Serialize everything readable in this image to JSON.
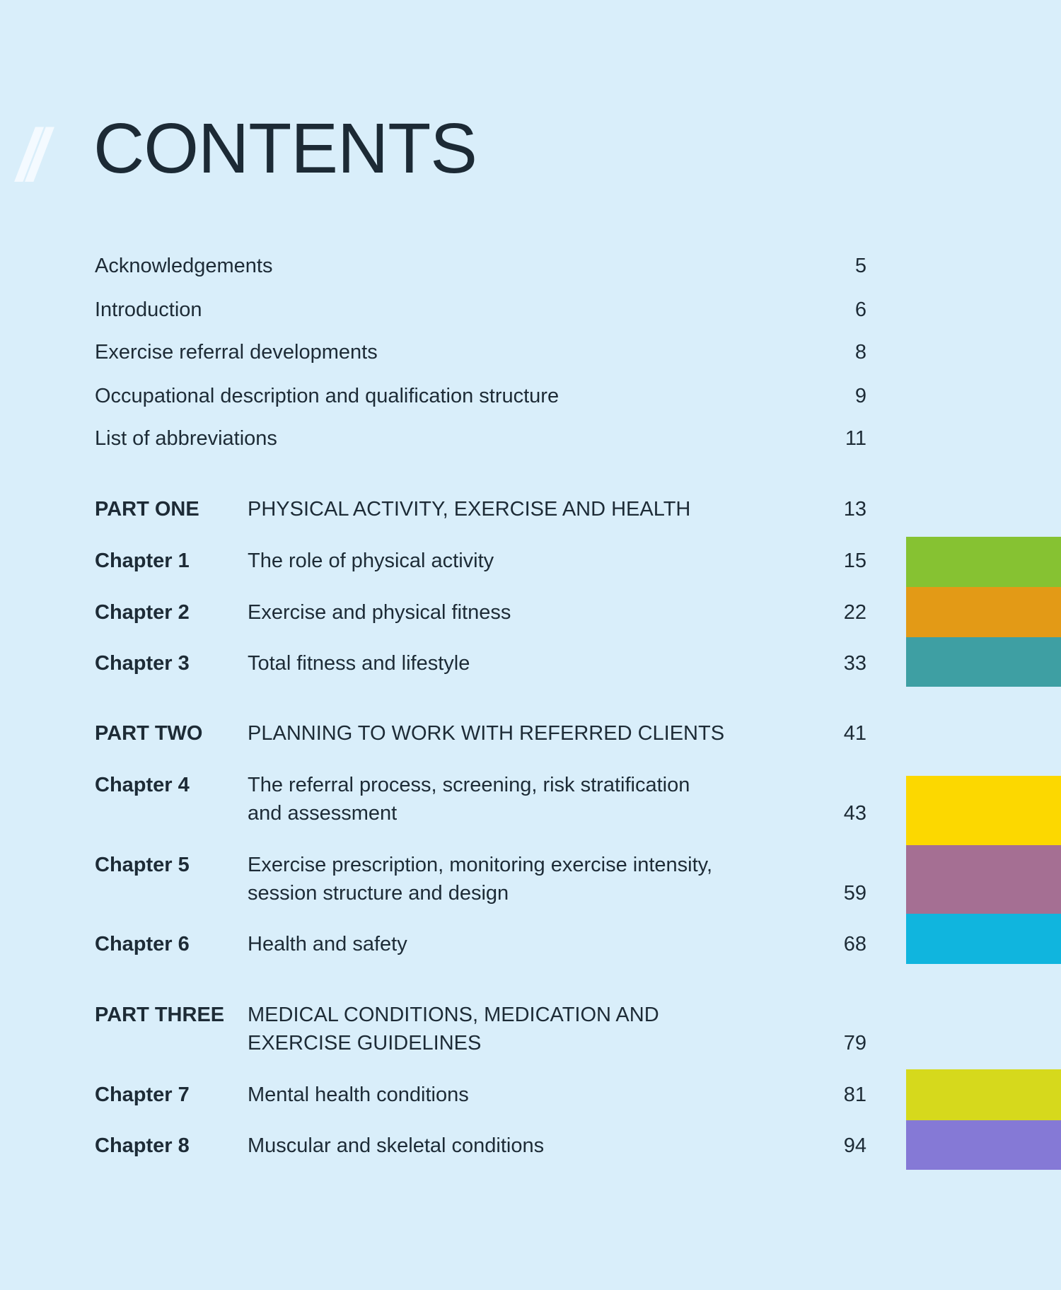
{
  "heading": {
    "decoration": "//",
    "title": "CONTENTS"
  },
  "front_matter": [
    {
      "title": "Acknowledgements",
      "page": "5"
    },
    {
      "title": "Introduction",
      "page": "6"
    },
    {
      "title": "Exercise referral developments",
      "page": "8"
    },
    {
      "title": "Occupational description and qualification structure",
      "page": "9"
    },
    {
      "title": "List of abbreviations",
      "page": "11"
    }
  ],
  "entries": [
    {
      "label": "PART ONE",
      "line1": "PHYSICAL ACTIVITY, EXERCISE AND HEALTH",
      "line2": "",
      "page": "13"
    },
    {
      "label": "Chapter 1",
      "line1": "The role of physical activity",
      "line2": "",
      "page": "15"
    },
    {
      "label": "Chapter 2",
      "line1": "Exercise and physical fitness",
      "line2": "",
      "page": "22"
    },
    {
      "label": "Chapter 3",
      "line1": "Total fitness and lifestyle",
      "line2": "",
      "page": "33"
    },
    {
      "label": "PART TWO",
      "line1": "PLANNING TO WORK WITH REFERRED CLIENTS",
      "line2": "",
      "page": "41"
    },
    {
      "label": "Chapter 4",
      "line1": "The referral process, screening, risk stratification",
      "line2": "and assessment",
      "page": "43"
    },
    {
      "label": "Chapter 5",
      "line1": "Exercise prescription, monitoring exercise intensity,",
      "line2": "session structure and design",
      "page": "59"
    },
    {
      "label": "Chapter 6",
      "line1": "Health and safety",
      "line2": "",
      "page": "68"
    },
    {
      "label": "PART THREE",
      "line1": "MEDICAL CONDITIONS, MEDICATION AND",
      "line2": "EXERCISE GUIDELINES",
      "page": "79"
    },
    {
      "label": "Chapter 7",
      "line1": "Mental health conditions",
      "line2": "",
      "page": "81"
    },
    {
      "label": "Chapter 8",
      "line1": "Muscular and skeletal conditions",
      "line2": "",
      "page": "94"
    }
  ],
  "tab_colors": {
    "chapter1": "#86c232",
    "chapter2": "#e39a16",
    "chapter3": "#3e9fa3",
    "chapter4": "#fcd800",
    "chapter5": "#a56f93",
    "chapter6": "#10b5de",
    "chapter7": "#d6d91c",
    "chapter8": "#8579d6"
  }
}
